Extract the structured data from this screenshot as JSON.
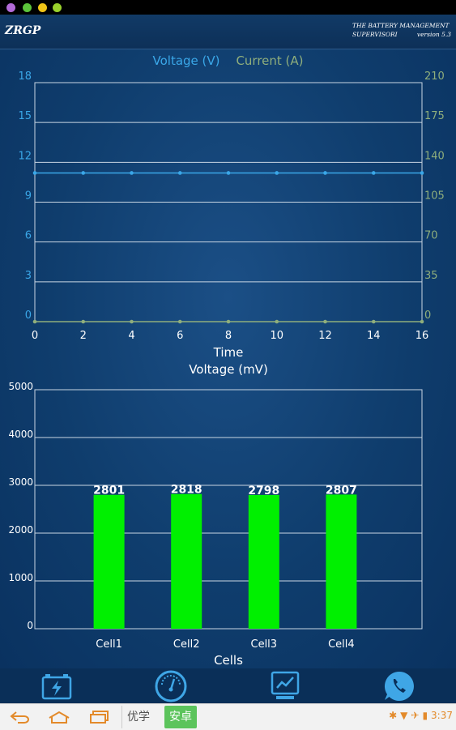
{
  "status_bar": {
    "time": "3:37"
  },
  "header": {
    "title": "ZRGP",
    "subtitle_line1": "THE BATTERY MANAGEMENT",
    "subtitle_line2_left": "SUPERVISORI",
    "subtitle_line2_right": "version 5.3"
  },
  "colors": {
    "voltage": "#3aa7e8",
    "current": "#8fae7c",
    "bars": "#00f000",
    "background": "#0f3d6d"
  },
  "chart_data": [
    {
      "type": "line",
      "legend": [
        "Voltage (V)",
        "Current (A)"
      ],
      "xlabel": "Time",
      "x": [
        0,
        2,
        4,
        6,
        8,
        10,
        12,
        14,
        16
      ],
      "xlim": [
        0,
        16
      ],
      "ylim_left": [
        0,
        18
      ],
      "ylim_right": [
        0,
        210
      ],
      "yticks_left": [
        "0",
        "3",
        "6",
        "9",
        "12",
        "15",
        "18"
      ],
      "yticks_right": [
        "0",
        "35",
        "70",
        "105",
        "140",
        "175",
        "210"
      ],
      "xticks": [
        "0",
        "2",
        "4",
        "6",
        "8",
        "10",
        "12",
        "14",
        "16"
      ],
      "series": [
        {
          "name": "Voltage (V)",
          "axis": "left",
          "x": [
            0,
            2,
            4,
            6,
            8,
            10,
            12,
            14,
            16
          ],
          "values": [
            11.2,
            11.2,
            11.2,
            11.2,
            11.2,
            11.2,
            11.2,
            11.2,
            11.2
          ]
        },
        {
          "name": "Current (A)",
          "axis": "right",
          "x": [
            0,
            2,
            4,
            6,
            8,
            10,
            12,
            14,
            16
          ],
          "values": [
            0,
            0,
            0,
            0,
            0,
            0,
            0,
            0,
            0
          ]
        }
      ],
      "grid": true
    },
    {
      "type": "bar",
      "title": "Voltage (mV)",
      "xlabel": "Cells",
      "categories": [
        "Cell1",
        "Cell2",
        "Cell3",
        "Cell4"
      ],
      "values": [
        2801,
        2818,
        2798,
        2807
      ],
      "value_labels": [
        "2801",
        "2818",
        "2798",
        "2807"
      ],
      "ylim": [
        0,
        5000
      ],
      "yticks": [
        "0",
        "1000",
        "2000",
        "3000",
        "4000",
        "5000"
      ],
      "grid": true
    }
  ],
  "tabs": [
    {
      "icon": "battery-icon"
    },
    {
      "icon": "gauge-icon"
    },
    {
      "icon": "chart-icon"
    },
    {
      "icon": "phone-icon"
    }
  ],
  "navbar": {
    "ime_left": "优学",
    "ime_right": "安卓"
  }
}
